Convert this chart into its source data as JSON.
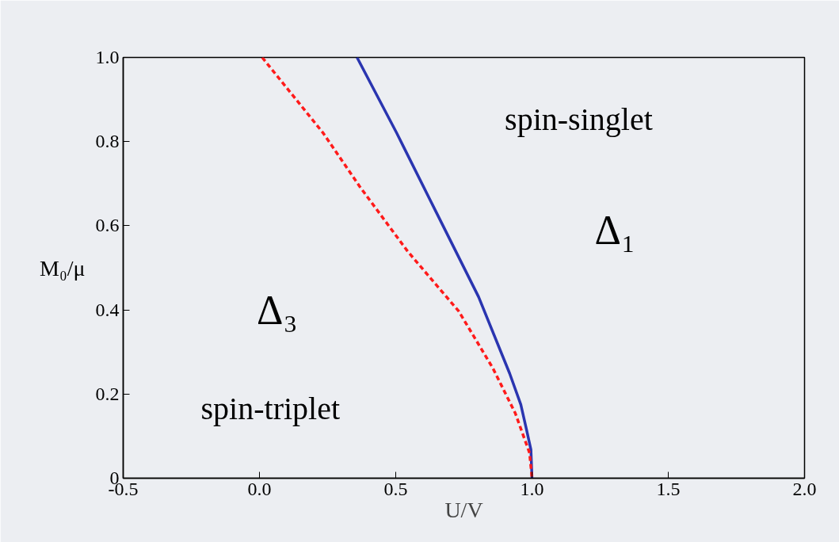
{
  "chart_data": {
    "type": "line",
    "xlabel": "U/V",
    "ylabel": "M₀/μ",
    "xlim": [
      -0.5,
      2.0
    ],
    "xticks": [
      -0.5,
      "0.0",
      0.5,
      "1.0",
      1.5,
      "2.0"
    ],
    "ylim": [
      0,
      1.0
    ],
    "yticks": [
      0,
      0.2,
      0.4,
      0.6,
      0.8,
      "1.0"
    ],
    "grid": false,
    "series": [
      {
        "color": "#2a35b0",
        "line_style": "solid",
        "x": [
          0.358,
          0.503,
          0.648,
          0.804,
          0.918,
          0.959,
          0.98,
          0.996,
          1.0
        ],
        "values": [
          1.0,
          0.821,
          0.633,
          0.431,
          0.249,
          0.175,
          0.115,
          0.068,
          0.0
        ]
      },
      {
        "color": "#ff1a1a",
        "line_style": "dashed",
        "x": [
          0.01,
          0.233,
          0.368,
          0.544,
          0.731,
          0.856,
          0.939,
          0.991,
          1.0
        ],
        "values": [
          1.0,
          0.821,
          0.693,
          0.539,
          0.397,
          0.262,
          0.154,
          0.06,
          0.0
        ]
      }
    ],
    "annotations": [
      "spin-singlet",
      "Δ₁",
      "Δ₃",
      "spin-triplet"
    ]
  }
}
